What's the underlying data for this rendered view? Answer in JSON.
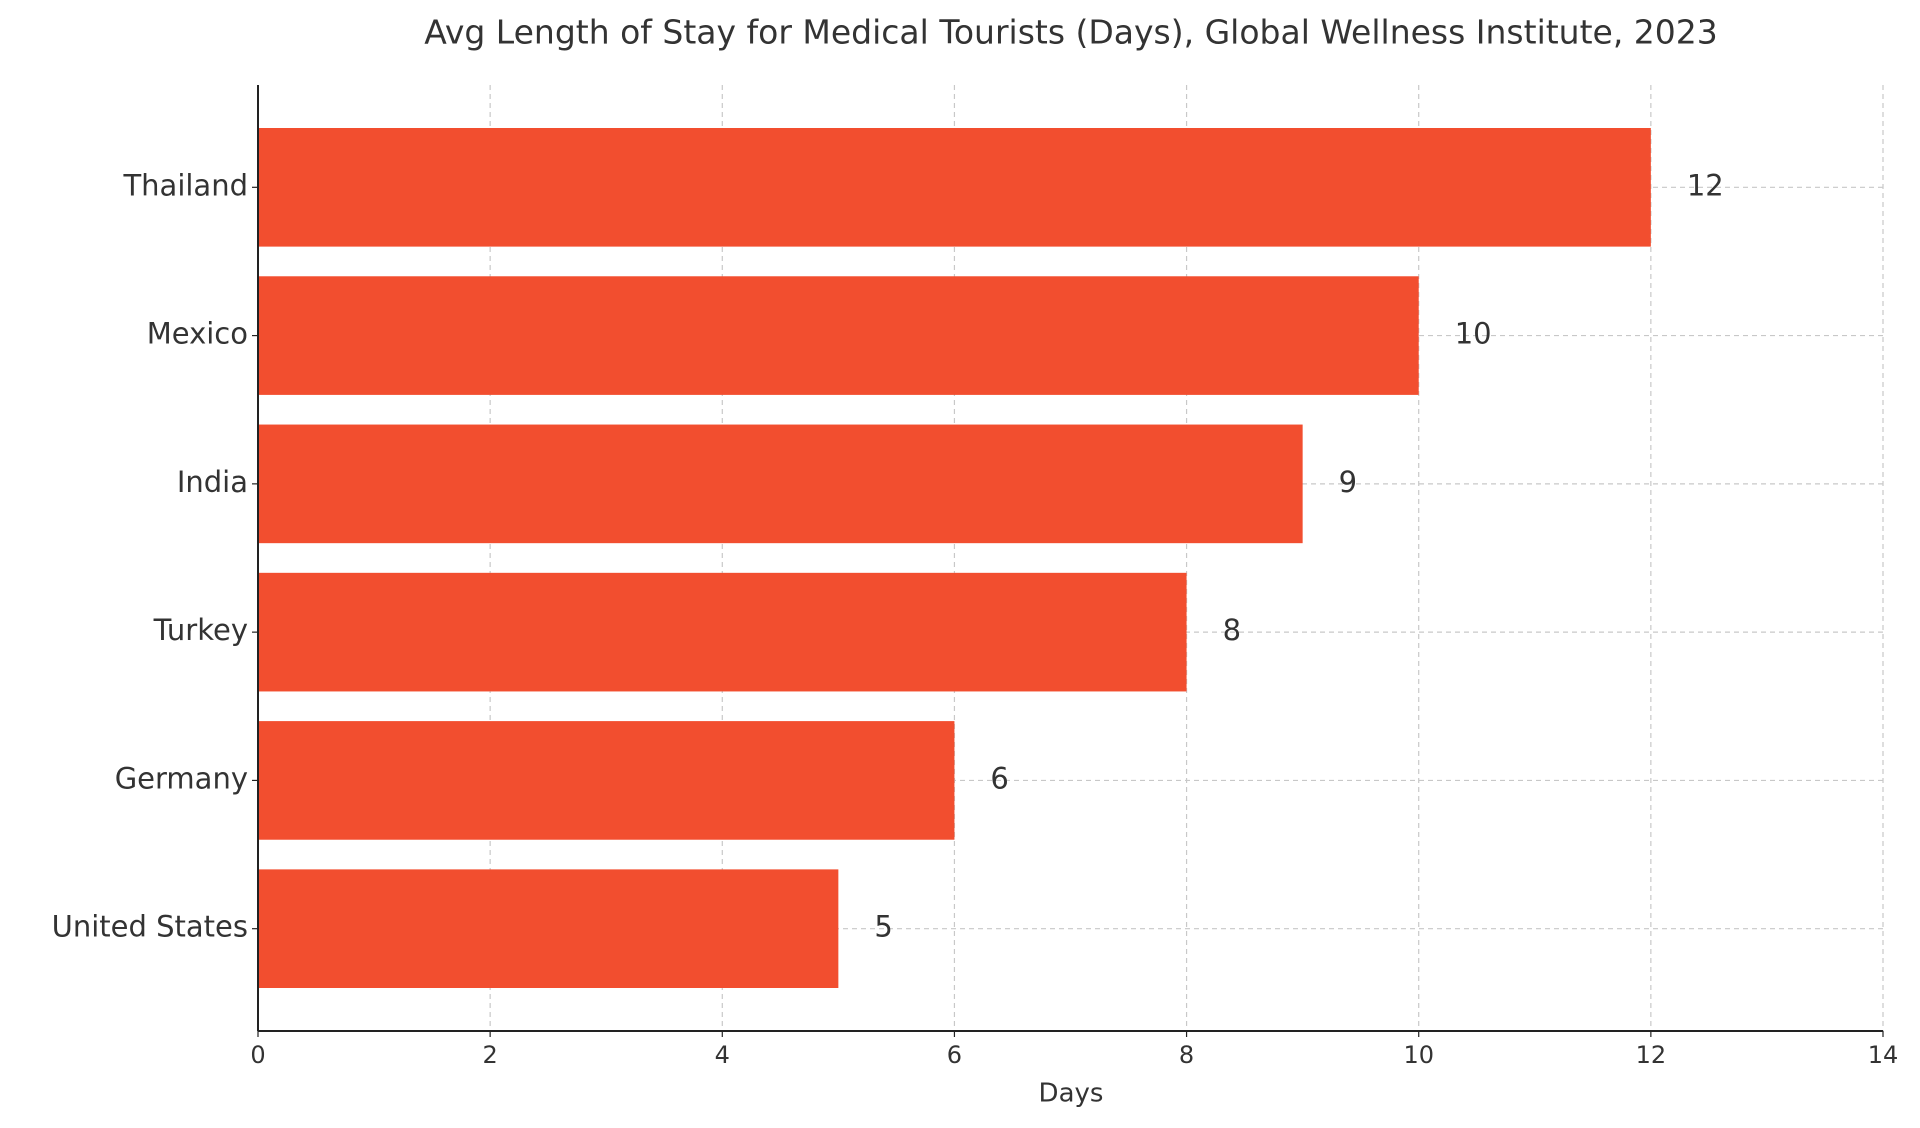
{
  "chart_data": {
    "type": "barh",
    "title": "Avg Length of Stay for Medical Tourists (Days), Global Wellness Institute, 2023",
    "categories": [
      "Thailand",
      "Mexico",
      "India",
      "Turkey",
      "Germany",
      "United States"
    ],
    "values": [
      12,
      10,
      9,
      8,
      6,
      5
    ],
    "color": "#f24e2f",
    "xlabel": "Days",
    "xlim": [
      0,
      14
    ],
    "xticks": [
      0,
      2,
      4,
      6,
      8,
      10,
      12,
      14
    ],
    "grid": true
  }
}
